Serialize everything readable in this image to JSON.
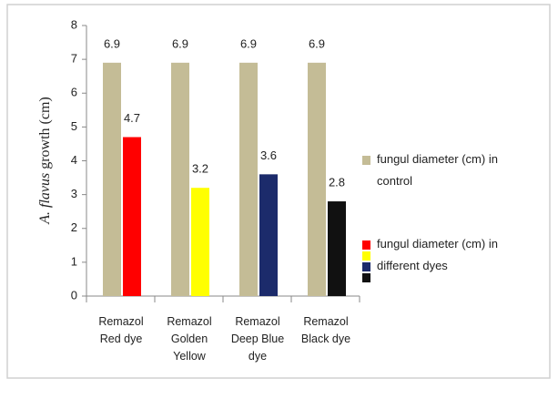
{
  "chart_data": {
    "type": "bar",
    "y_label_italic": "A. flavus",
    "y_label": "growth (cm)",
    "categories": [
      [
        "Remazol",
        "Red dye"
      ],
      [
        "Remazol",
        "Golden",
        "Yellow"
      ],
      [
        "Remazol",
        "Deep Blue",
        "dye"
      ],
      [
        "Remazol",
        "Black dye"
      ]
    ],
    "series": [
      {
        "name": [
          "fungul diameter (cm) in",
          "control"
        ],
        "color": "#c4bc96",
        "values": [
          6.9,
          6.9,
          6.9,
          6.9
        ]
      },
      {
        "name": [
          "fungul diameter (cm) in",
          "different dyes"
        ],
        "colors": [
          "#ff0000",
          "#ffff00",
          "#1c2b6b",
          "#111111"
        ],
        "values": [
          4.7,
          3.2,
          3.6,
          2.8
        ]
      }
    ],
    "ylim": [
      0,
      8
    ],
    "yticks": [
      0,
      1,
      2,
      3,
      4,
      5,
      6,
      7,
      8
    ],
    "grid": false,
    "legend": "right"
  }
}
